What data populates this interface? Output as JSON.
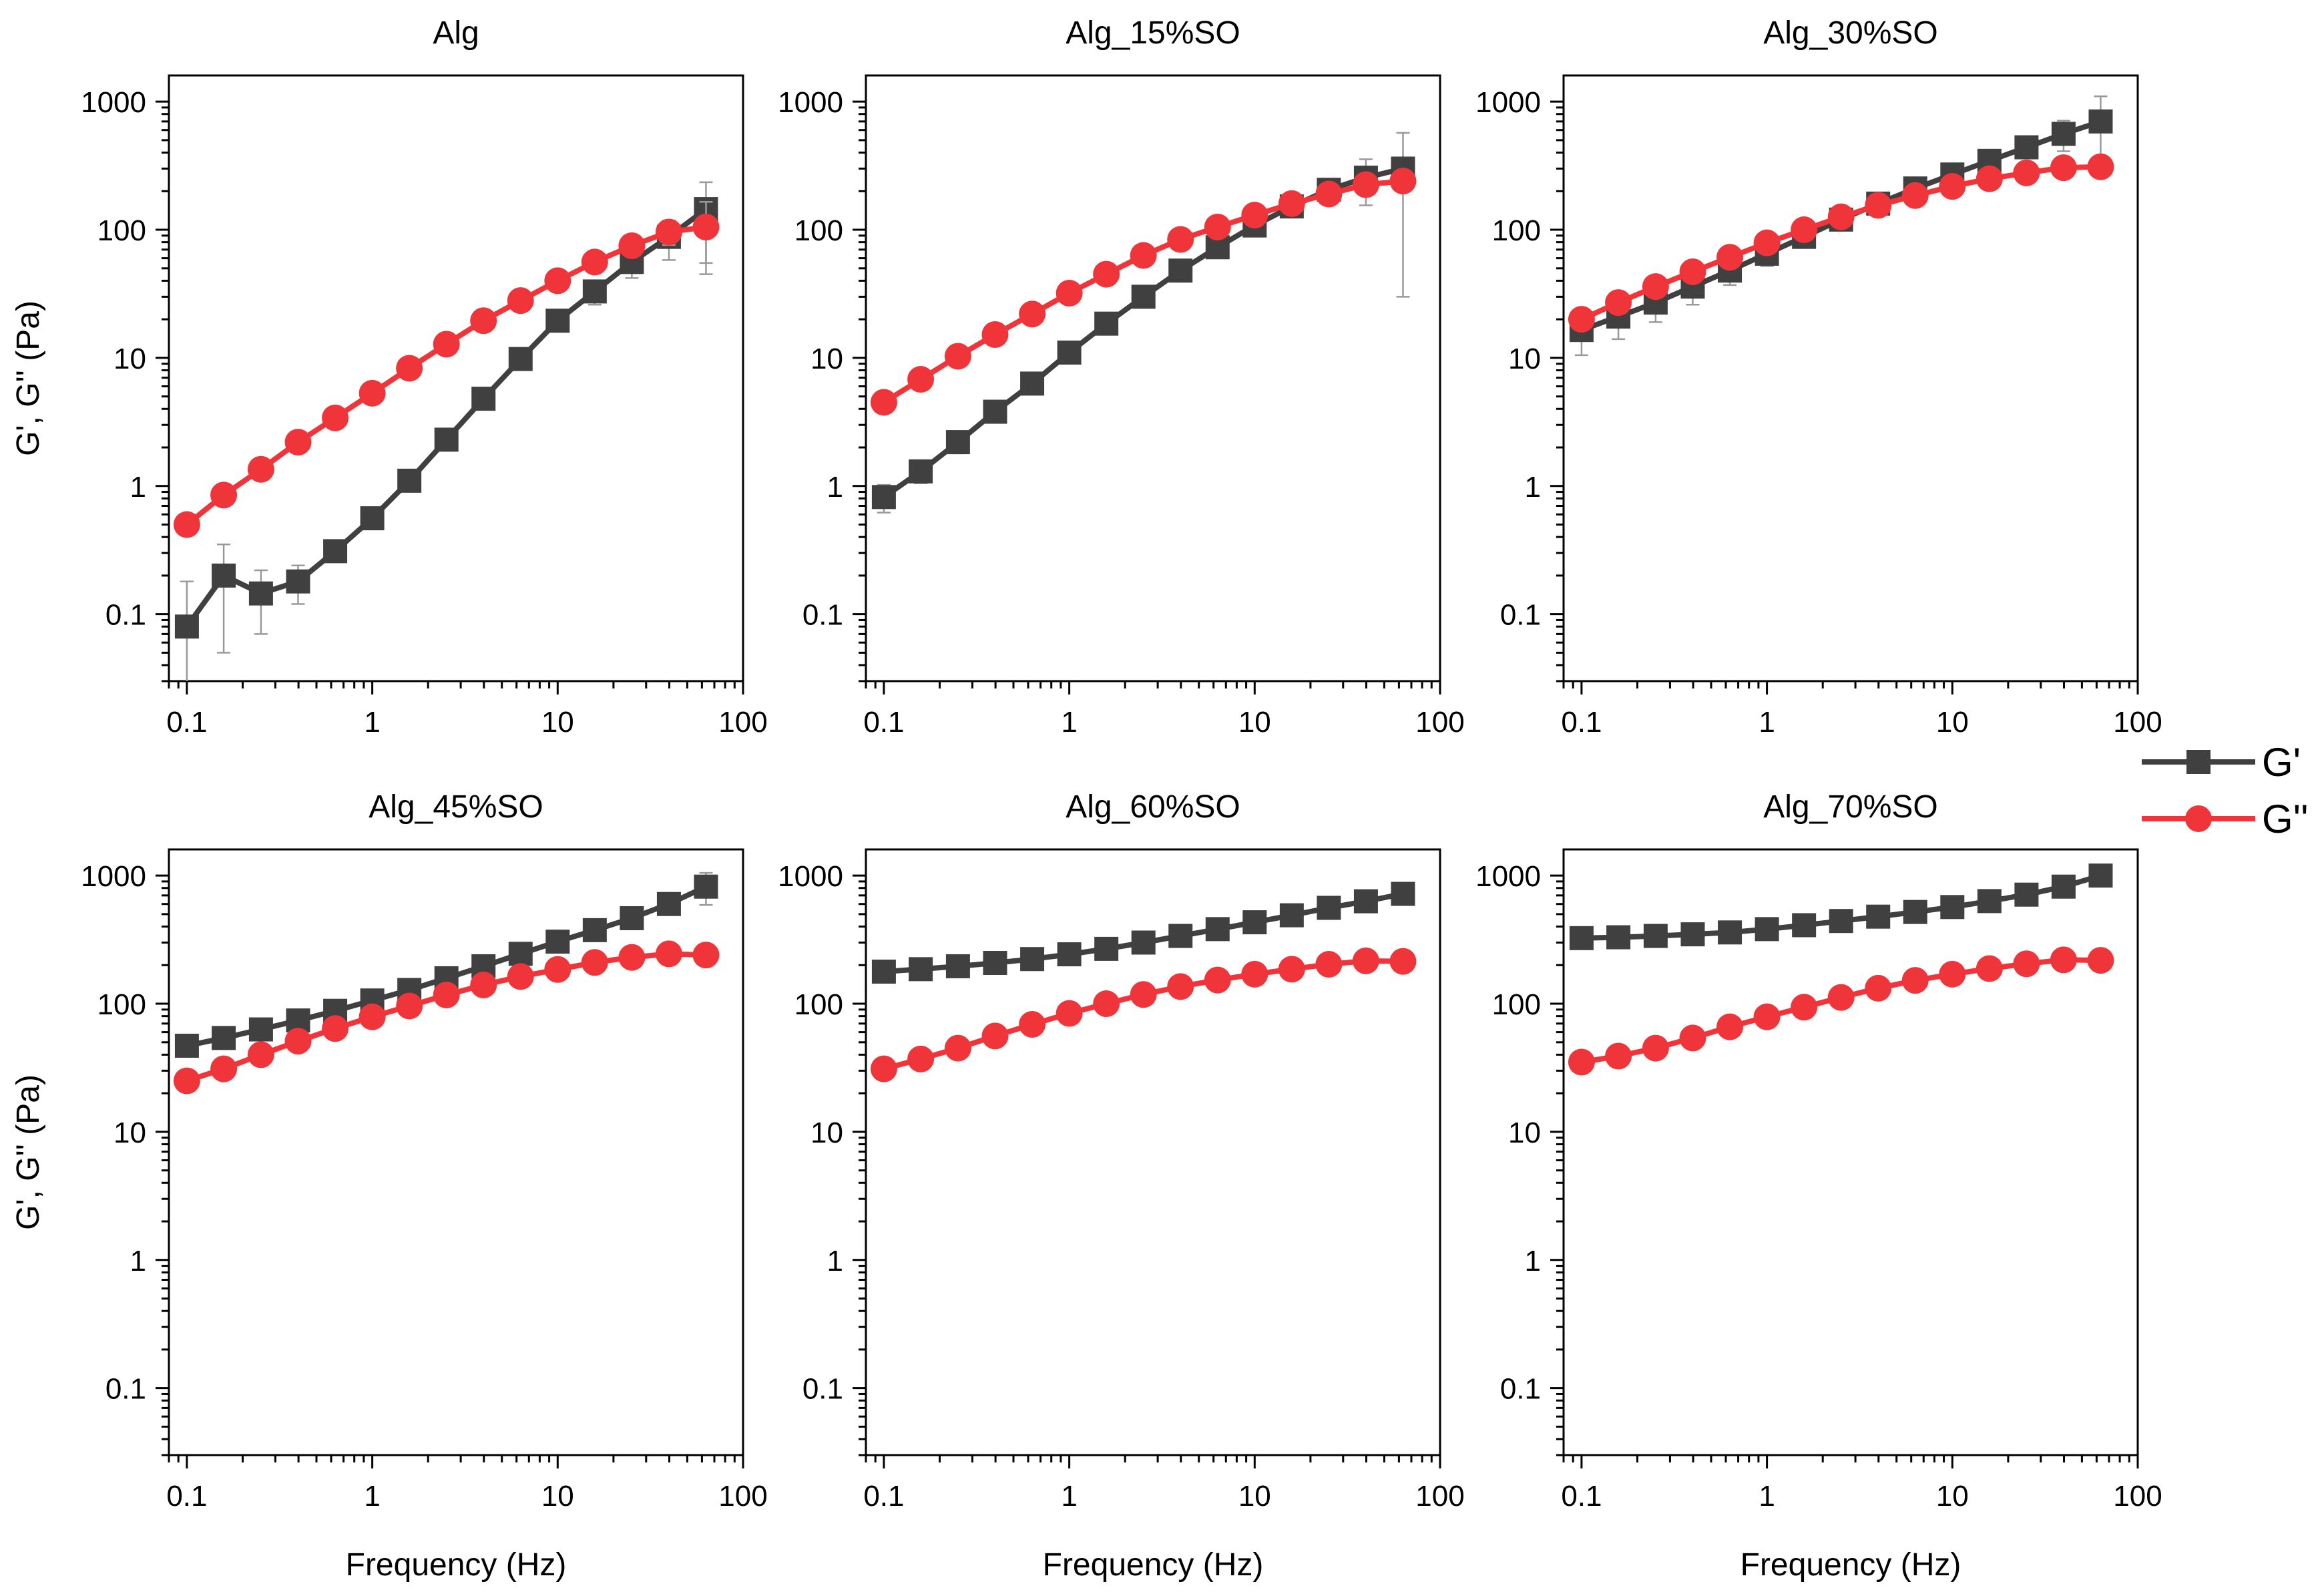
{
  "figure": {
    "legend": {
      "placement": "right-middle",
      "entries": [
        "G'",
        "G''"
      ]
    }
  },
  "colors": {
    "g_prime": "#404040",
    "g_double_prime": "#f0353a",
    "error_bar": "#999999",
    "axis": "#000000"
  },
  "chart_data": [
    {
      "type": "line",
      "title": "Alg",
      "xlabel": "",
      "ylabel": "G', G'' (Pa)",
      "xscale": "log",
      "yscale": "log",
      "xlim": [
        0.08,
        100
      ],
      "ylim": [
        0.03,
        1600
      ],
      "xticks": [
        "0.1",
        "1",
        "10",
        "100"
      ],
      "yticks": [
        "0.1",
        "1",
        "10",
        "100",
        "1000"
      ],
      "x": [
        0.1,
        0.158,
        0.251,
        0.398,
        0.631,
        1,
        1.585,
        2.512,
        3.981,
        6.31,
        10,
        15.85,
        25.12,
        39.81,
        63.1
      ],
      "series": [
        {
          "name": "G'",
          "marker": "square",
          "values": [
            0.08,
            0.2,
            0.145,
            0.18,
            0.31,
            0.56,
            1.1,
            2.3,
            4.8,
            9.8,
            19.5,
            33,
            56,
            88,
            145
          ],
          "error": [
            0.1,
            0.15,
            0.075,
            0.06,
            0.05,
            0.06,
            0.1,
            0.2,
            0.4,
            0.8,
            2,
            7,
            14,
            30,
            90
          ]
        },
        {
          "name": "G''",
          "marker": "circle",
          "values": [
            0.5,
            0.85,
            1.35,
            2.2,
            3.4,
            5.3,
            8.3,
            12.8,
            19.5,
            28,
            40,
            56,
            75,
            96,
            105
          ],
          "error": [
            0.06,
            0.06,
            0.08,
            0.1,
            0.15,
            0.2,
            0.3,
            0.5,
            0.8,
            1,
            2,
            4,
            8,
            20,
            60
          ]
        }
      ]
    },
    {
      "type": "line",
      "title": "Alg_15%SO",
      "xlabel": "",
      "ylabel": "",
      "xscale": "log",
      "yscale": "log",
      "xlim": [
        0.08,
        100
      ],
      "ylim": [
        0.03,
        1600
      ],
      "xticks": [
        "0.1",
        "1",
        "10",
        "100"
      ],
      "yticks": [
        "0.1",
        "1",
        "10",
        "100",
        "1000"
      ],
      "x": [
        0.1,
        0.158,
        0.251,
        0.398,
        0.631,
        1,
        1.585,
        2.512,
        3.981,
        6.31,
        10,
        15.85,
        25.12,
        39.81,
        63.1
      ],
      "series": [
        {
          "name": "G'",
          "marker": "square",
          "values": [
            0.82,
            1.3,
            2.2,
            3.8,
            6.3,
            11,
            18.5,
            30,
            48,
            73,
            108,
            152,
            205,
            255,
            300
          ],
          "error": [
            0.2,
            0.25,
            0.4,
            0.6,
            1,
            1.5,
            2,
            3,
            4,
            5,
            8,
            12,
            20,
            100,
            270
          ]
        },
        {
          "name": "G''",
          "marker": "circle",
          "values": [
            4.5,
            6.8,
            10.3,
            15.2,
            22,
            32,
            45,
            63,
            84,
            105,
            130,
            160,
            190,
            225,
            240
          ],
          "error": [
            0.3,
            0.4,
            0.5,
            0.8,
            1,
            1.5,
            2,
            3,
            4,
            5,
            6,
            8,
            10,
            15,
            20
          ]
        }
      ]
    },
    {
      "type": "line",
      "title": "Alg_30%SO",
      "xlabel": "",
      "ylabel": "",
      "xscale": "log",
      "yscale": "log",
      "xlim": [
        0.08,
        100
      ],
      "ylim": [
        0.03,
        1600
      ],
      "xticks": [
        "0.1",
        "1",
        "10",
        "100"
      ],
      "yticks": [
        "0.1",
        "1",
        "10",
        "100",
        "1000"
      ],
      "x": [
        0.1,
        0.158,
        0.251,
        0.398,
        0.631,
        1,
        1.585,
        2.512,
        3.981,
        6.31,
        10,
        15.85,
        25.12,
        39.81,
        63.1
      ],
      "series": [
        {
          "name": "G'",
          "marker": "square",
          "values": [
            16.5,
            21,
            27,
            36,
            48,
            65,
            88,
            120,
            160,
            210,
            270,
            345,
            440,
            560,
            700
          ],
          "error": [
            6,
            7,
            8,
            10,
            11,
            13,
            15,
            18,
            20,
            25,
            30,
            40,
            60,
            150,
            400
          ]
        },
        {
          "name": "G''",
          "marker": "circle",
          "values": [
            20,
            27,
            36,
            47,
            61,
            79,
            100,
            126,
            155,
            185,
            218,
            250,
            278,
            305,
            310
          ],
          "error": [
            3,
            3,
            3,
            4,
            5,
            5,
            6,
            7,
            8,
            9,
            10,
            12,
            14,
            15,
            16
          ]
        }
      ]
    },
    {
      "type": "line",
      "title": "Alg_45%SO",
      "xlabel": "Frequency (Hz)",
      "ylabel": "G', G'' (Pa)",
      "xscale": "log",
      "yscale": "log",
      "xlim": [
        0.08,
        100
      ],
      "ylim": [
        0.03,
        1600
      ],
      "xticks": [
        "0.1",
        "1",
        "10",
        "100"
      ],
      "yticks": [
        "0.1",
        "1",
        "10",
        "100",
        "1000"
      ],
      "x": [
        0.1,
        0.158,
        0.251,
        0.398,
        0.631,
        1,
        1.585,
        2.512,
        3.981,
        6.31,
        10,
        15.85,
        25.12,
        39.81,
        63.1
      ],
      "series": [
        {
          "name": "G'",
          "marker": "square",
          "values": [
            47,
            54,
            63,
            74,
            88,
            106,
            128,
            158,
            196,
            245,
            305,
            375,
            465,
            600,
            820
          ],
          "error": [
            3,
            3,
            3,
            4,
            5,
            6,
            7,
            8,
            10,
            12,
            15,
            20,
            40,
            80,
            230
          ]
        },
        {
          "name": "G''",
          "marker": "circle",
          "values": [
            25,
            31,
            40,
            51,
            64,
            79,
            96,
            117,
            140,
            163,
            185,
            210,
            230,
            245,
            240
          ],
          "error": [
            2,
            2,
            2,
            3,
            3,
            4,
            4,
            5,
            6,
            7,
            8,
            9,
            10,
            12,
            12
          ]
        }
      ]
    },
    {
      "type": "line",
      "title": "Alg_60%SO",
      "xlabel": "Frequency (Hz)",
      "ylabel": "",
      "xscale": "log",
      "yscale": "log",
      "xlim": [
        0.08,
        100
      ],
      "ylim": [
        0.03,
        1600
      ],
      "xticks": [
        "0.1",
        "1",
        "10",
        "100"
      ],
      "yticks": [
        "0.1",
        "1",
        "10",
        "100",
        "1000"
      ],
      "x": [
        0.1,
        0.158,
        0.251,
        0.398,
        0.631,
        1,
        1.585,
        2.512,
        3.981,
        6.31,
        10,
        15.85,
        25.12,
        39.81,
        63.1
      ],
      "series": [
        {
          "name": "G'",
          "marker": "square",
          "values": [
            178,
            186,
            196,
            208,
            223,
            243,
            268,
            300,
            338,
            382,
            432,
            490,
            560,
            630,
            720
          ],
          "error": [
            8,
            8,
            8,
            9,
            9,
            10,
            10,
            12,
            13,
            14,
            15,
            18,
            20,
            25,
            40
          ]
        },
        {
          "name": "G''",
          "marker": "circle",
          "values": [
            31,
            37,
            45,
            56,
            69,
            84,
            100,
            118,
            136,
            153,
            170,
            186,
            203,
            216,
            214
          ],
          "error": [
            2,
            2,
            2,
            3,
            3,
            3,
            4,
            4,
            5,
            5,
            6,
            7,
            8,
            9,
            10
          ]
        }
      ]
    },
    {
      "type": "line",
      "title": "Alg_70%SO",
      "xlabel": "Frequency (Hz)",
      "ylabel": "",
      "xscale": "log",
      "yscale": "log",
      "xlim": [
        0.08,
        100
      ],
      "ylim": [
        0.03,
        1600
      ],
      "xticks": [
        "0.1",
        "1",
        "10",
        "100"
      ],
      "yticks": [
        "0.1",
        "1",
        "10",
        "100",
        "1000"
      ],
      "x": [
        0.1,
        0.158,
        0.251,
        0.398,
        0.631,
        1,
        1.585,
        2.512,
        3.981,
        6.31,
        10,
        15.85,
        25.12,
        39.81,
        63.1
      ],
      "series": [
        {
          "name": "G'",
          "marker": "square",
          "values": [
            325,
            330,
            338,
            348,
            360,
            382,
            410,
            442,
            478,
            520,
            568,
            632,
            710,
            820,
            1000
          ],
          "error": [
            40,
            40,
            40,
            40,
            40,
            40,
            40,
            40,
            40,
            40,
            45,
            50,
            60,
            100,
            170
          ]
        },
        {
          "name": "G''",
          "marker": "circle",
          "values": [
            35,
            39,
            45,
            54,
            66,
            79,
            94,
            112,
            132,
            152,
            170,
            188,
            205,
            220,
            218
          ],
          "error": [
            2,
            2,
            2,
            3,
            3,
            3,
            4,
            4,
            5,
            5,
            6,
            7,
            8,
            9,
            10
          ]
        }
      ]
    }
  ]
}
